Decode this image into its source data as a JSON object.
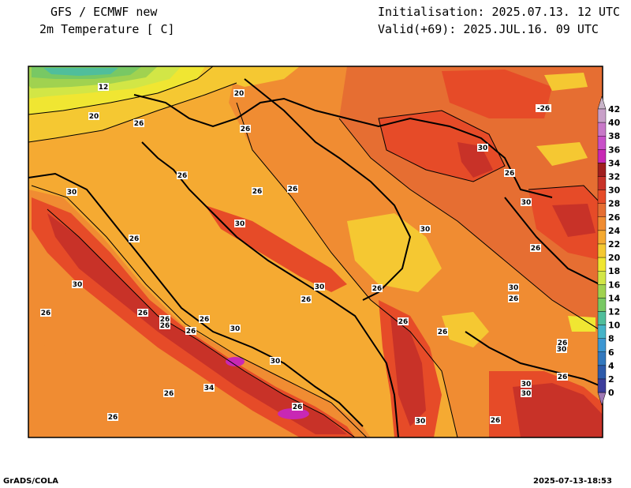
{
  "header": {
    "title_line1": "GFS / ECMWF new",
    "title_line2": "2m Temperature [ C]",
    "init_line": "Initialisation: 2025.07.13. 12 UTC",
    "valid_line": "Valid(+69): 2025.JUL.16. 09 UTC"
  },
  "footer": {
    "credit": "GrADS/COLA",
    "timestamp": "2025-07-13-18:53"
  },
  "colorbar": {
    "ticks": [
      "42",
      "40",
      "38",
      "36",
      "34",
      "32",
      "30",
      "28",
      "26",
      "24",
      "22",
      "20",
      "18",
      "16",
      "14",
      "12",
      "10",
      "8",
      "6",
      "4",
      "2",
      "0"
    ],
    "colors": [
      "#c8a0c8",
      "#c878c8",
      "#c850c8",
      "#c828b4",
      "#a01e1e",
      "#c83228",
      "#e64b28",
      "#e66e32",
      "#f08c32",
      "#f5aa32",
      "#f5c832",
      "#f0e632",
      "#d2e646",
      "#a0d250",
      "#78c864",
      "#50be9b",
      "#46b4c8",
      "#3c96d2",
      "#3278be",
      "#2d5aaa",
      "#3c3c9b",
      "#7850a0"
    ],
    "top_arrow_color": "#c8b4c8",
    "bottom_arrow_color": "#a078b4"
  },
  "map": {
    "contour_labels": [
      {
        "text": "12"
      },
      {
        "text": "20"
      },
      {
        "text": "20"
      },
      {
        "text": "26"
      },
      {
        "text": "26"
      },
      {
        "text": "-26"
      },
      {
        "text": "30"
      },
      {
        "text": "26"
      },
      {
        "text": "26"
      },
      {
        "text": "26"
      },
      {
        "text": "30"
      },
      {
        "text": "26"
      },
      {
        "text": "30"
      },
      {
        "text": "26"
      },
      {
        "text": "30"
      },
      {
        "text": "30"
      },
      {
        "text": "26"
      },
      {
        "text": "30"
      },
      {
        "text": "26"
      },
      {
        "text": "26"
      },
      {
        "text": "26"
      },
      {
        "text": "26"
      },
      {
        "text": "26"
      },
      {
        "text": "30"
      },
      {
        "text": "26"
      },
      {
        "text": "30"
      },
      {
        "text": "26"
      },
      {
        "text": "26"
      },
      {
        "text": "30"
      },
      {
        "text": "26"
      },
      {
        "text": "26"
      },
      {
        "text": "26"
      },
      {
        "text": "26"
      },
      {
        "text": "30"
      },
      {
        "text": "30"
      },
      {
        "text": "26"
      },
      {
        "text": "30"
      },
      {
        "text": "34"
      },
      {
        "text": "30"
      },
      {
        "text": "26"
      },
      {
        "text": "26"
      },
      {
        "text": "26"
      },
      {
        "text": "30"
      },
      {
        "text": "26"
      }
    ]
  }
}
